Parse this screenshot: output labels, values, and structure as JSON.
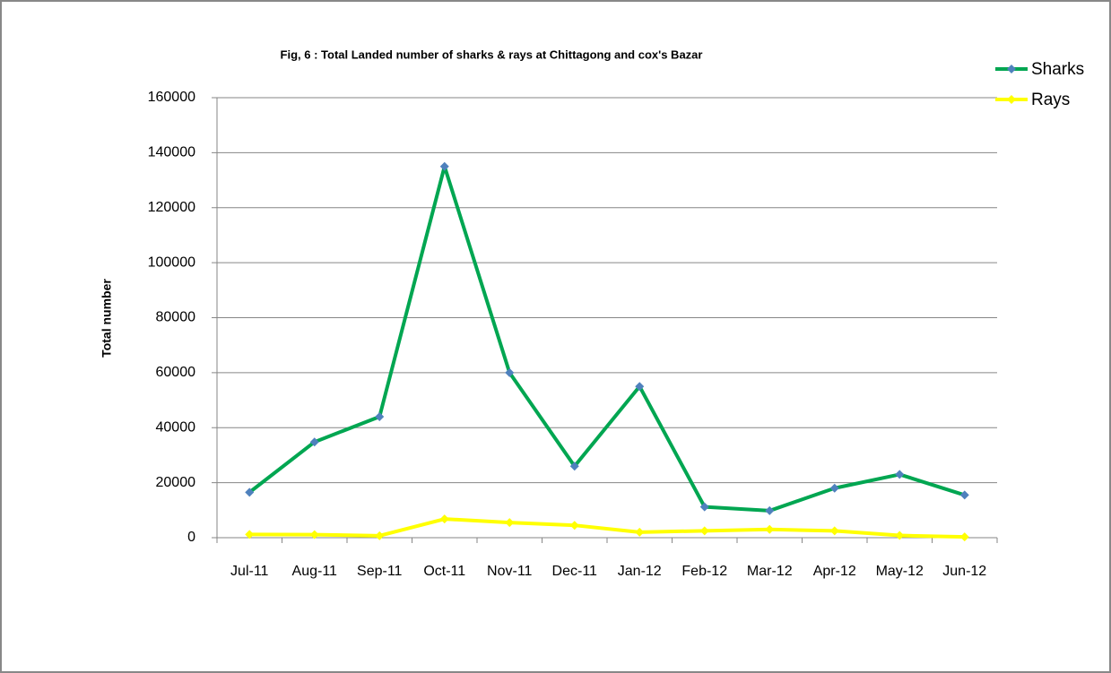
{
  "chart_data": {
    "type": "line",
    "title": "Fig, 6 :  Total Landed  number of  sharks  &  rays  at Chittagong and cox's Bazar",
    "y_label": "Total  number",
    "categories": [
      "Jul-11",
      "Aug-11",
      "Sep-11",
      "Oct-11",
      "Nov-11",
      "Dec-11",
      "Jan-12",
      "Feb-12",
      "Mar-12",
      "Apr-12",
      "May-12",
      "Jun-12"
    ],
    "series": [
      {
        "name": "Sharks",
        "color": "#00a651",
        "marker_color": "#4f81bd",
        "values": [
          16500,
          34800,
          44000,
          135000,
          60000,
          26000,
          55000,
          11200,
          9800,
          18000,
          23000,
          15500
        ]
      },
      {
        "name": "Rays",
        "color": "#ffff00",
        "marker_color": "#ffff00",
        "values": [
          1200,
          1100,
          700,
          6800,
          5500,
          4500,
          2000,
          2500,
          3000,
          2500,
          800,
          300
        ]
      }
    ],
    "ylim": [
      0,
      160000
    ],
    "yticks": [
      0,
      20000,
      40000,
      60000,
      80000,
      100000,
      120000,
      140000,
      160000
    ],
    "grid": true,
    "legend": "top-right"
  }
}
